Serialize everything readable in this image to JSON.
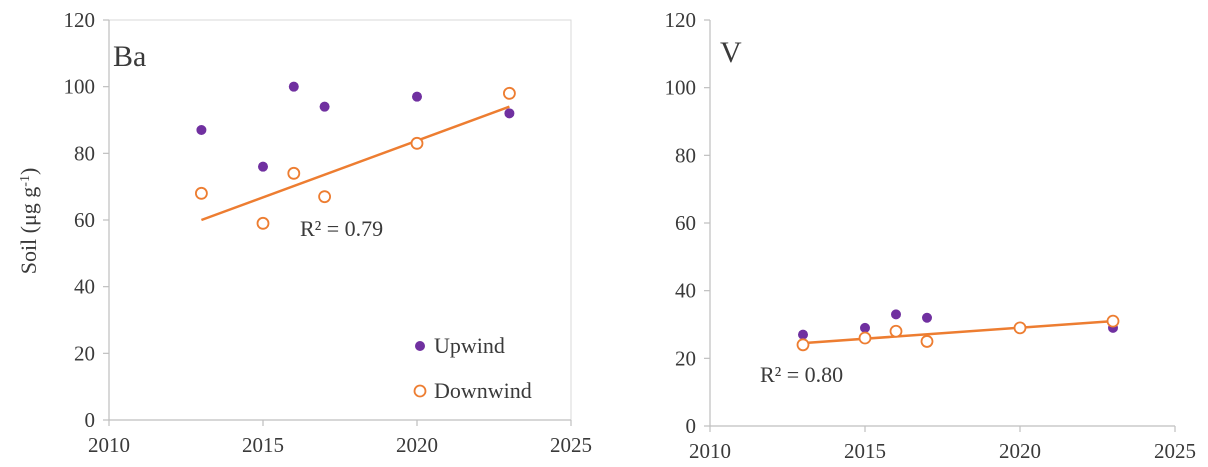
{
  "colors": {
    "upwind": "#7030A0",
    "downwind": "#ED7D31",
    "axis": "#bfbfbf",
    "frame": "#d9d9d9"
  },
  "ylabel": {
    "main": "Soil (μg g",
    "sup": "-1",
    "close": ")"
  },
  "legend": {
    "upwind": "Upwind",
    "downwind": "Downwind"
  },
  "chart_data": [
    {
      "type": "scatter",
      "panel_label": "Ba",
      "xlim": [
        2010,
        2025
      ],
      "ylim": [
        0,
        120
      ],
      "xticks": [
        "2010",
        "2015",
        "2020",
        "2025"
      ],
      "yticks": [
        "0",
        "20",
        "40",
        "60",
        "80",
        "100",
        "120"
      ],
      "series": [
        {
          "name": "Upwind",
          "marker": "filled",
          "points": [
            [
              2013,
              87
            ],
            [
              2015,
              76
            ],
            [
              2016,
              100
            ],
            [
              2017,
              94
            ],
            [
              2020,
              97
            ],
            [
              2023,
              92
            ]
          ]
        },
        {
          "name": "Downwind",
          "marker": "open",
          "points": [
            [
              2013,
              68
            ],
            [
              2015,
              59
            ],
            [
              2016,
              74
            ],
            [
              2017,
              67
            ],
            [
              2020,
              83
            ],
            [
              2023,
              98
            ]
          ]
        }
      ],
      "trendline": {
        "series": "Downwind",
        "x": [
          2013,
          2023
        ],
        "y": [
          60,
          94
        ]
      },
      "annotation": "R² = 0.79",
      "legend": true
    },
    {
      "type": "scatter",
      "panel_label": "V",
      "xlim": [
        2010,
        2025
      ],
      "ylim": [
        0,
        120
      ],
      "xticks": [
        "2010",
        "2015",
        "2020",
        "2025"
      ],
      "yticks": [
        "0",
        "20",
        "40",
        "60",
        "80",
        "100",
        "120"
      ],
      "series": [
        {
          "name": "Upwind",
          "marker": "filled",
          "points": [
            [
              2013,
              27
            ],
            [
              2015,
              29
            ],
            [
              2016,
              33
            ],
            [
              2017,
              32
            ],
            [
              2020,
              29
            ],
            [
              2023,
              29
            ]
          ]
        },
        {
          "name": "Downwind",
          "marker": "open",
          "points": [
            [
              2013,
              24
            ],
            [
              2015,
              26
            ],
            [
              2016,
              28
            ],
            [
              2017,
              25
            ],
            [
              2020,
              29
            ],
            [
              2023,
              31
            ]
          ]
        }
      ],
      "trendline": {
        "series": "Downwind",
        "x": [
          2013,
          2023
        ],
        "y": [
          24.5,
          31
        ]
      },
      "annotation": "R² = 0.80",
      "legend": false
    }
  ]
}
